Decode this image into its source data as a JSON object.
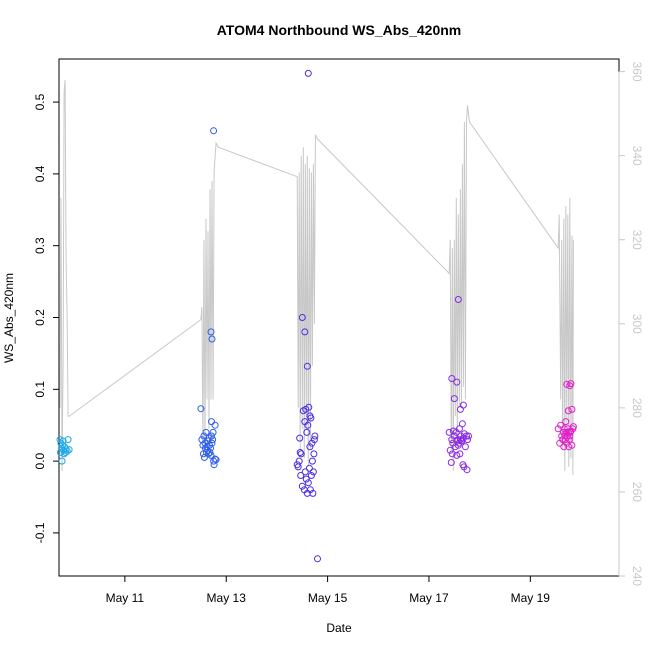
{
  "chart_data": {
    "type": "scatter",
    "title": "ATOM4 Northbound WS_Abs_420nm",
    "xlabel": "Date",
    "ylabel": "WS_Abs_420nm",
    "x_ticks": [
      "May 11",
      "May 13",
      "May 15",
      "May 17",
      "May 19"
    ],
    "x_tick_days": [
      11,
      13,
      15,
      17,
      19
    ],
    "xlim": [
      9.7,
      20.75
    ],
    "y_ticks": [
      "-0.1",
      "0.0",
      "0.1",
      "0.2",
      "0.3",
      "0.4",
      "0.5"
    ],
    "y_tick_values": [
      -0.1,
      0.0,
      0.1,
      0.2,
      0.3,
      0.4,
      0.5
    ],
    "ylim": [
      -0.16,
      0.56
    ],
    "y2_ticks": [
      "240",
      "260",
      "280",
      "300",
      "320",
      "340",
      "360"
    ],
    "y2_tick_values": [
      240,
      260,
      280,
      300,
      320,
      340,
      360
    ],
    "y2lim": [
      240,
      363
    ],
    "grid": false,
    "colors": {
      "points_early": "#1fa8e8",
      "points_mid": "#2f5fe8",
      "points_late": "#8a2be2",
      "points_last": "#e020c8",
      "secondary_line": "#c8c8c8",
      "axis": "#000000",
      "axis_right": "#c8c8c8"
    },
    "series": [
      {
        "color": "#1fa8e8",
        "x": [
          9.72,
          9.73,
          9.74,
          9.75,
          9.76,
          9.77,
          9.78,
          9.79,
          9.8,
          9.81,
          9.83,
          9.84,
          9.86,
          9.88,
          9.9
        ],
        "y": [
          0.03,
          0.012,
          0.025,
          0.018,
          0.0,
          0.022,
          0.028,
          0.015,
          0.01,
          0.02,
          0.012,
          0.017,
          0.014,
          0.03,
          0.016
        ]
      },
      {
        "color": "#2f5fe8",
        "x": [
          12.5,
          12.52,
          12.54,
          12.55,
          12.56,
          12.57,
          12.58,
          12.59,
          12.6,
          12.61,
          12.62,
          12.63,
          12.64,
          12.65,
          12.66,
          12.67,
          12.68,
          12.69,
          12.7,
          12.71,
          12.72,
          12.74,
          12.75,
          12.76,
          12.78,
          12.8,
          12.72,
          12.75,
          12.7,
          12.71,
          12.73,
          12.78
        ],
        "y": [
          0.073,
          0.03,
          0.022,
          0.01,
          0.035,
          0.005,
          0.025,
          0.018,
          0.04,
          0.012,
          0.02,
          0.015,
          0.028,
          0.01,
          0.032,
          0.022,
          0.012,
          0.018,
          0.008,
          0.035,
          0.025,
          0.04,
          0.0,
          -0.005,
          0.003,
          0.002,
          0.17,
          0.46,
          0.18,
          0.055,
          0.03,
          0.05
        ]
      },
      {
        "color": "#4a2fe0",
        "x": [
          14.4,
          14.42,
          14.44,
          14.45,
          14.46,
          14.47,
          14.48,
          14.5,
          14.52,
          14.54,
          14.55,
          14.56,
          14.57,
          14.58,
          14.59,
          14.6,
          14.61,
          14.62,
          14.63,
          14.64,
          14.65,
          14.66,
          14.67,
          14.68,
          14.69,
          14.7,
          14.71,
          14.72,
          14.73,
          14.74,
          14.75,
          14.5,
          14.55,
          14.6,
          14.62,
          14.65,
          14.8
        ],
        "y": [
          -0.005,
          -0.008,
          0.0,
          0.032,
          0.012,
          -0.02,
          0.01,
          -0.035,
          0.07,
          -0.04,
          0.055,
          -0.015,
          0.072,
          -0.025,
          0.04,
          -0.045,
          0.05,
          -0.03,
          0.075,
          -0.01,
          0.02,
          -0.04,
          0.06,
          -0.02,
          0.025,
          0.0,
          -0.045,
          -0.015,
          0.01,
          0.03,
          0.035,
          0.2,
          0.18,
          0.132,
          0.54,
          0.063,
          -0.136
        ]
      },
      {
        "color": "#8a2be2",
        "x": [
          17.4,
          17.42,
          17.44,
          17.45,
          17.46,
          17.47,
          17.48,
          17.5,
          17.52,
          17.54,
          17.55,
          17.56,
          17.57,
          17.58,
          17.59,
          17.6,
          17.61,
          17.62,
          17.63,
          17.64,
          17.65,
          17.66,
          17.67,
          17.68,
          17.69,
          17.7,
          17.72,
          17.74,
          17.75,
          17.76,
          17.78,
          17.45,
          17.5,
          17.55,
          17.58,
          17.62,
          17.68
        ],
        "y": [
          0.04,
          0.015,
          -0.002,
          0.03,
          0.01,
          0.025,
          0.042,
          0.035,
          0.02,
          0.04,
          0.008,
          0.028,
          0.03,
          0.022,
          0.025,
          0.045,
          0.01,
          0.03,
          0.035,
          0.028,
          0.028,
          0.052,
          -0.005,
          0.032,
          -0.008,
          0.038,
          0.02,
          0.035,
          -0.012,
          0.03,
          0.035,
          0.115,
          0.087,
          0.11,
          0.225,
          0.072,
          0.078
        ]
      },
      {
        "color": "#e020c8",
        "x": [
          19.55,
          19.58,
          19.6,
          19.62,
          19.64,
          19.65,
          19.66,
          19.67,
          19.68,
          19.69,
          19.7,
          19.71,
          19.72,
          19.73,
          19.74,
          19.75,
          19.76,
          19.77,
          19.78,
          19.79,
          19.8,
          19.82,
          19.84,
          19.85,
          19.72,
          19.75,
          19.78,
          19.82,
          19.8
        ],
        "y": [
          0.045,
          0.025,
          0.05,
          0.035,
          0.03,
          0.04,
          0.02,
          0.045,
          0.035,
          0.03,
          0.055,
          0.04,
          0.025,
          0.035,
          0.045,
          0.04,
          0.02,
          0.03,
          0.035,
          0.04,
          0.042,
          0.022,
          0.045,
          0.048,
          0.107,
          0.07,
          0.105,
          0.072,
          0.108
        ]
      }
    ],
    "secondary_line": {
      "color": "#c8c8c8",
      "x": [
        9.72,
        9.74,
        9.76,
        9.78,
        9.8,
        9.82,
        9.84,
        9.86,
        9.88,
        9.9,
        12.5,
        12.52,
        12.54,
        12.56,
        12.58,
        12.6,
        12.62,
        12.64,
        12.66,
        12.68,
        12.7,
        12.72,
        12.74,
        12.76,
        12.78,
        12.8,
        12.85,
        14.4,
        14.42,
        14.44,
        14.46,
        14.48,
        14.5,
        14.52,
        14.54,
        14.56,
        14.58,
        14.6,
        14.62,
        14.64,
        14.66,
        14.68,
        14.7,
        14.72,
        14.74,
        14.76,
        14.8,
        17.4,
        17.42,
        17.44,
        17.46,
        17.48,
        17.5,
        17.52,
        17.54,
        17.56,
        17.58,
        17.6,
        17.62,
        17.64,
        17.66,
        17.68,
        17.7,
        17.72,
        17.74,
        17.76,
        17.78,
        17.8,
        19.55,
        19.57,
        19.6,
        19.62,
        19.64,
        19.66,
        19.68,
        19.7,
        19.72,
        19.74,
        19.76,
        19.78,
        19.8,
        19.82,
        19.84,
        19.85
      ],
      "y": [
        280,
        330,
        265,
        290,
        355,
        358,
        315,
        302,
        278,
        278,
        301,
        304,
        270,
        320,
        270,
        325,
        282,
        322,
        275,
        332,
        282,
        334,
        282,
        336,
        340,
        343,
        342,
        335,
        280,
        336,
        270,
        340,
        275,
        342,
        268,
        338,
        275,
        340,
        266,
        337,
        270,
        336,
        290,
        338,
        300,
        345,
        344,
        312,
        320,
        270,
        318,
        265,
        320,
        278,
        330,
        272,
        326,
        280,
        332,
        280,
        338,
        285,
        348,
        282,
        348,
        352,
        350,
        348,
        318,
        326,
        282,
        320,
        270,
        325,
        265,
        328,
        276,
        326,
        266,
        330,
        268,
        321,
        264,
        320
      ]
    }
  }
}
